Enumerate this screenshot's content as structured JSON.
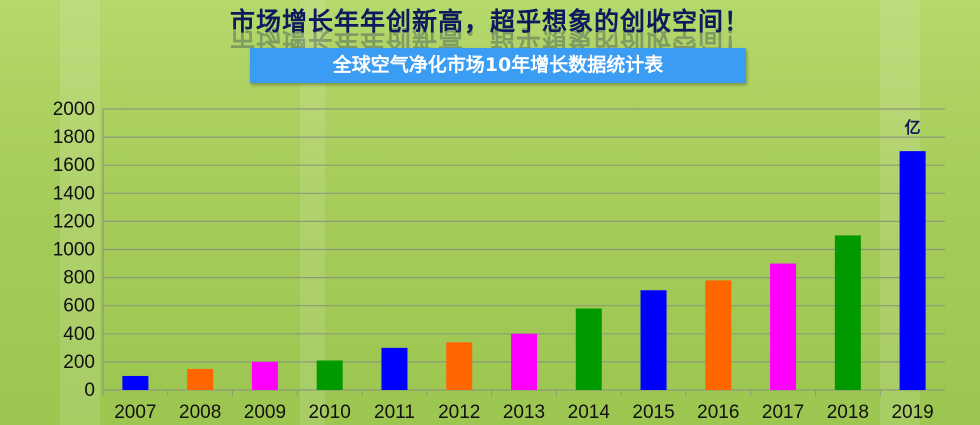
{
  "header": {
    "headline": "市场增长年年创新高，超乎想象的创收空间！",
    "subtitle": "全球空气净化市场10年增长数据统计表"
  },
  "chart_data": {
    "type": "bar",
    "title": "全球空气净化市场10年增长数据统计表",
    "unit_label": "亿",
    "categories": [
      "2007",
      "2008",
      "2009",
      "2010",
      "2011",
      "2012",
      "2013",
      "2014",
      "2015",
      "2016",
      "2017",
      "2018",
      "2019"
    ],
    "values": [
      100,
      150,
      200,
      210,
      300,
      340,
      400,
      580,
      710,
      780,
      900,
      1100,
      1700
    ],
    "colors": [
      "#0000ff",
      "#ff6600",
      "#ff00ff",
      "#009900",
      "#0000ff",
      "#ff6600",
      "#ff00ff",
      "#009900",
      "#0000ff",
      "#ff6600",
      "#ff00ff",
      "#009900",
      "#0000ff"
    ],
    "ylim": [
      0,
      2000
    ],
    "yticks": [
      0,
      200,
      400,
      600,
      800,
      1000,
      1200,
      1400,
      1600,
      1800,
      2000
    ],
    "grid": true,
    "legend": "none"
  }
}
